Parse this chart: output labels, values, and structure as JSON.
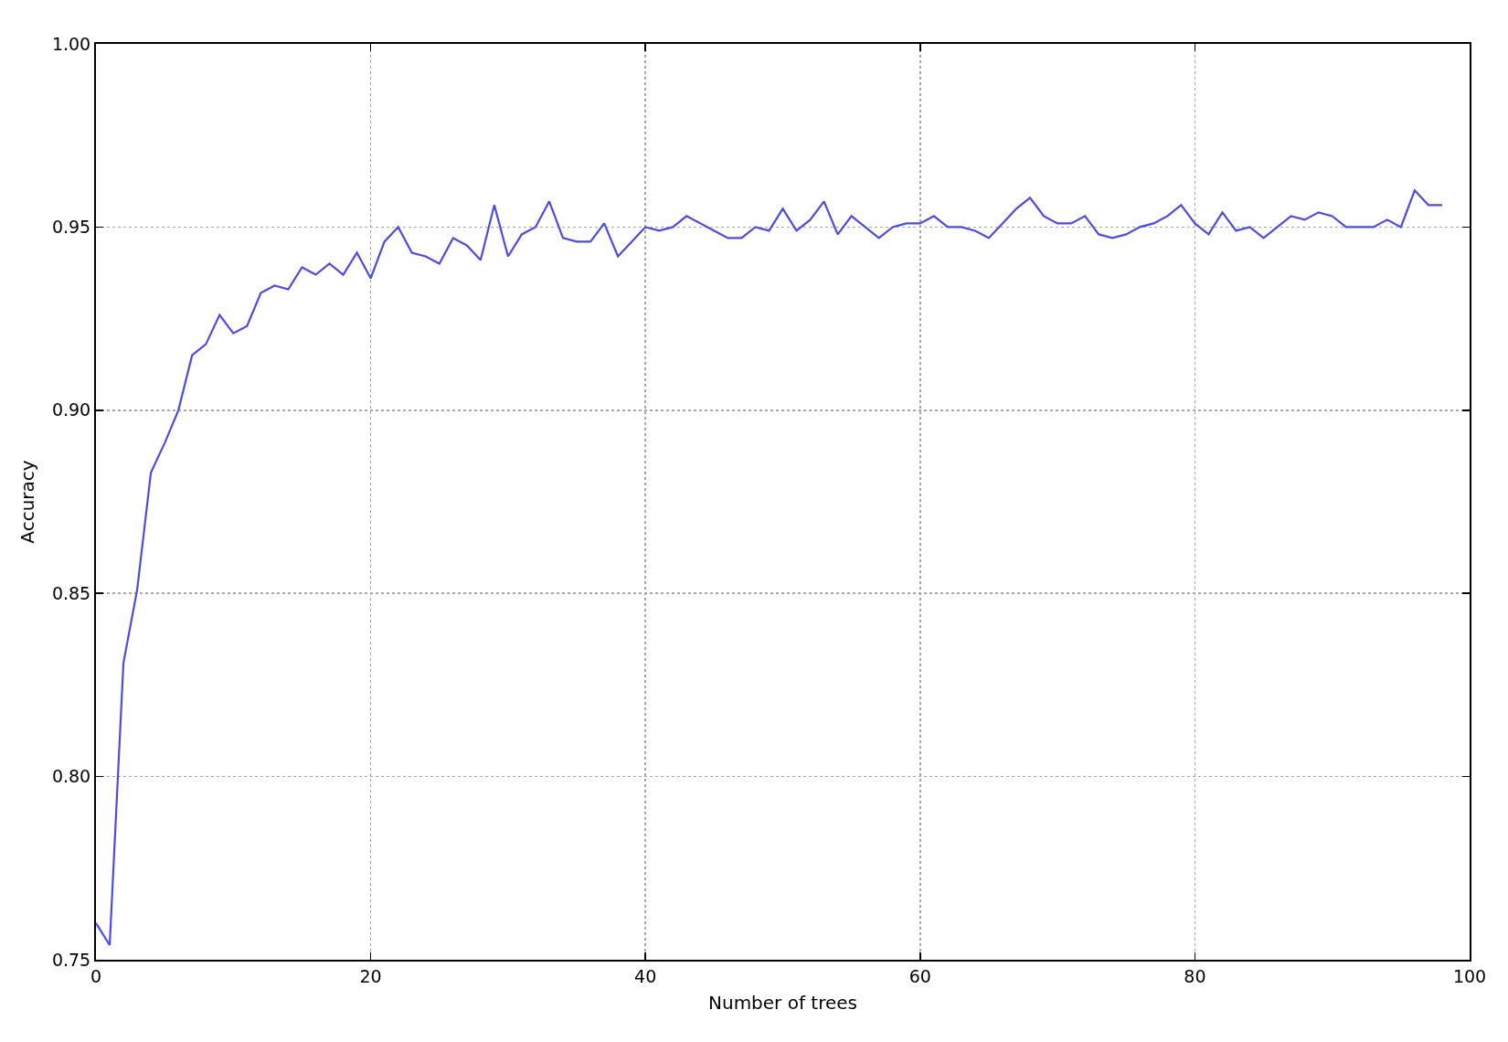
{
  "chart_data": {
    "type": "line",
    "xlabel": "Number of trees",
    "ylabel": "Accuracy",
    "x": [
      0,
      1,
      2,
      3,
      4,
      5,
      6,
      7,
      8,
      9,
      10,
      11,
      12,
      13,
      14,
      15,
      16,
      17,
      18,
      19,
      20,
      21,
      22,
      23,
      24,
      25,
      26,
      27,
      28,
      29,
      30,
      31,
      32,
      33,
      34,
      35,
      36,
      37,
      38,
      39,
      40,
      41,
      42,
      43,
      44,
      45,
      46,
      47,
      48,
      49,
      50,
      51,
      52,
      53,
      54,
      55,
      56,
      57,
      58,
      59,
      60,
      61,
      62,
      63,
      64,
      65,
      66,
      67,
      68,
      69,
      70,
      71,
      72,
      73,
      74,
      75,
      76,
      77,
      78,
      79,
      80,
      81,
      82,
      83,
      84,
      85,
      86,
      87,
      88,
      89,
      90,
      91,
      92,
      93,
      94,
      95,
      96,
      97,
      98
    ],
    "series": [
      {
        "color": "#4b4be8",
        "values": [
          0.76,
          0.754,
          0.831,
          0.851,
          0.883,
          0.891,
          0.9,
          0.915,
          0.918,
          0.926,
          0.921,
          0.923,
          0.932,
          0.934,
          0.933,
          0.939,
          0.937,
          0.94,
          0.937,
          0.943,
          0.936,
          0.946,
          0.95,
          0.943,
          0.942,
          0.94,
          0.947,
          0.945,
          0.941,
          0.956,
          0.942,
          0.948,
          0.95,
          0.957,
          0.947,
          0.946,
          0.946,
          0.951,
          0.942,
          0.946,
          0.95,
          0.949,
          0.95,
          0.953,
          0.951,
          0.949,
          0.947,
          0.947,
          0.95,
          0.949,
          0.955,
          0.949,
          0.952,
          0.957,
          0.948,
          0.953,
          0.95,
          0.947,
          0.95,
          0.951,
          0.951,
          0.953,
          0.95,
          0.95,
          0.949,
          0.947,
          0.951,
          0.955,
          0.958,
          0.953,
          0.951,
          0.951,
          0.953,
          0.948,
          0.947,
          0.948,
          0.95,
          0.951,
          0.953,
          0.956,
          0.951,
          0.948,
          0.954,
          0.949,
          0.95,
          0.947,
          0.95,
          0.953,
          0.952,
          0.954,
          0.953,
          0.95,
          0.95,
          0.95,
          0.952,
          0.95,
          0.96,
          0.956,
          0.956
        ]
      }
    ],
    "xlim": [
      0,
      100
    ],
    "xticks": [
      0,
      20,
      40,
      60,
      80,
      100
    ],
    "ylim": [
      0.75,
      1.0
    ],
    "yticks": [
      0.75,
      {
        "value": 0.8,
        "label": "0.80"
      },
      0.85,
      {
        "value": 0.9,
        "label": "0.90"
      },
      0.95,
      {
        "value": 1.0,
        "label": "1.00"
      }
    ],
    "grid": true,
    "line_style": "solid"
  }
}
